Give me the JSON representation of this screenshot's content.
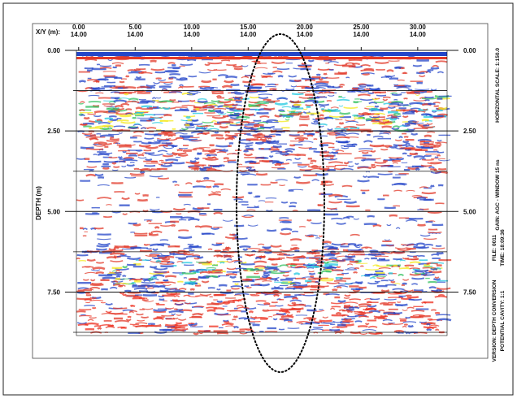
{
  "chart_data": {
    "type": "radargram",
    "x_label": "X/Y (m):",
    "y_label": "DEPTH (m)",
    "xlim": [
      -0.2,
      32.6
    ],
    "xticks": [
      {
        "value": 0,
        "label": "0.00"
      },
      {
        "value": 5,
        "label": "5.00"
      },
      {
        "value": 10,
        "label": "10.00"
      },
      {
        "value": 15,
        "label": "15.00"
      },
      {
        "value": 20,
        "label": "20.00"
      },
      {
        "value": 25,
        "label": "25.00"
      },
      {
        "value": 30,
        "label": "30.00"
      }
    ],
    "x_second_line": [
      "14.00",
      "14.00",
      "14.00",
      "14.00",
      "14.00",
      "14.00",
      "14.00"
    ],
    "ylim": [
      0,
      8.85
    ],
    "yticks": [
      {
        "value": 0,
        "label": "0.00"
      },
      {
        "value": 2.5,
        "label": "2.50"
      },
      {
        "value": 5,
        "label": "5.00"
      },
      {
        "value": 7.5,
        "label": "7.50"
      }
    ],
    "minor_yticks": [
      1.25,
      3.75,
      6.25,
      8.75
    ],
    "side_notes": [
      "HORIZONTAL SCALE: 1:150.0",
      "GAIN: AGC - WINDOW 15 ns",
      "FILE: 0011",
      "TIME: 18:09:36",
      "VERSION: DEPTH CONVERSION",
      "POTENTIAL CAVITY: 1:1"
    ]
  }
}
